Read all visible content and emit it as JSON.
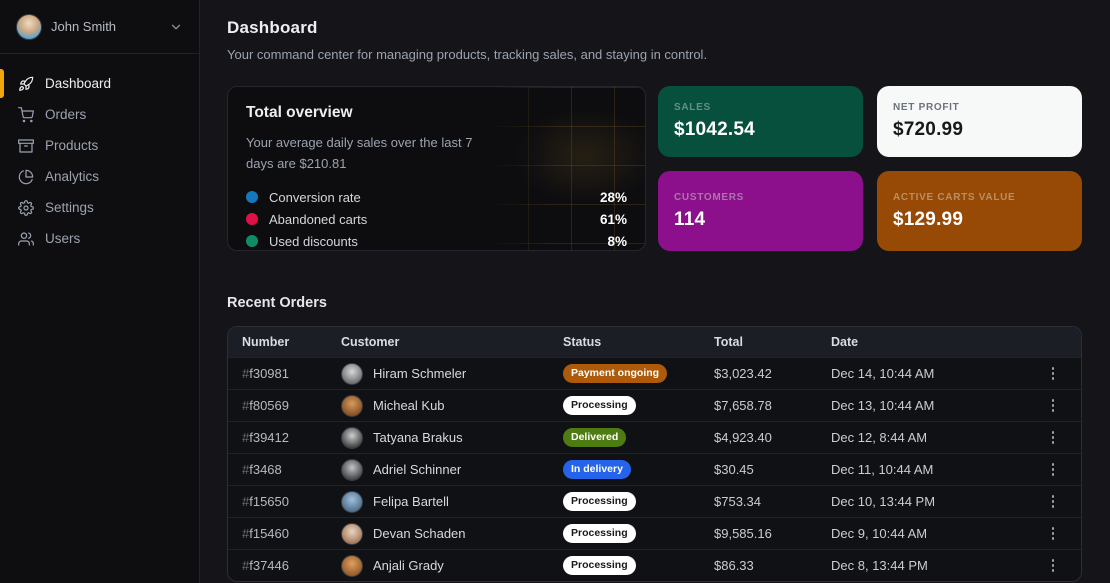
{
  "sidebar": {
    "user": {
      "name": "John Smith"
    },
    "items": [
      {
        "label": "Dashboard",
        "icon": "rocket-icon",
        "active": true
      },
      {
        "label": "Orders",
        "icon": "cart-icon",
        "active": false
      },
      {
        "label": "Products",
        "icon": "box-icon",
        "active": false
      },
      {
        "label": "Analytics",
        "icon": "pie-chart-icon",
        "active": false
      },
      {
        "label": "Settings",
        "icon": "gear-icon",
        "active": false
      },
      {
        "label": "Users",
        "icon": "users-icon",
        "active": false
      }
    ]
  },
  "header": {
    "title": "Dashboard",
    "subtitle": "Your command center for managing products, tracking sales, and staying in control."
  },
  "overview": {
    "title": "Total overview",
    "description": "Your average daily sales over the last 7 days are $210.81",
    "legend": [
      {
        "label": "Conversion rate",
        "value": "28%",
        "color": "#1478be"
      },
      {
        "label": "Abandoned carts",
        "value": "61%",
        "color": "#e01245"
      },
      {
        "label": "Used discounts",
        "value": "8%",
        "color": "#0e8c64"
      }
    ]
  },
  "stats": [
    {
      "label": "SALES",
      "value": "$1042.54",
      "bg": "#07503d",
      "label_color": "#649181",
      "value_color": "#ffffff"
    },
    {
      "label": "NET PROFIT",
      "value": "$720.99",
      "bg": "#f7f8f8",
      "label_color": "#6b7280",
      "value_color": "#17181a"
    },
    {
      "label": "CUSTOMERS",
      "value": "114",
      "bg": "#8c108c",
      "label_color": "#af74ab",
      "value_color": "#ffffff"
    },
    {
      "label": "ACTIVE CARTS VALUE",
      "value": "$129.99",
      "bg": "#964a05",
      "label_color": "#bd8e60",
      "value_color": "#ffffff"
    }
  ],
  "orders": {
    "title": "Recent Orders",
    "columns": [
      "Number",
      "Customer",
      "Status",
      "Total",
      "Date"
    ],
    "rows": [
      {
        "number": "#f30981",
        "customer": "Hiram Schmeler",
        "status": "Payment ongoing",
        "status_type": "payment-ongoing",
        "total": "$3,023.42",
        "date": "Dec 14, 10:44 AM",
        "avatar_from": "#d8d8d8",
        "avatar_to": "#5f5f63"
      },
      {
        "number": "#f80569",
        "customer": "Micheal Kub",
        "status": "Processing",
        "status_type": "processing",
        "total": "$7,658.78",
        "date": "Dec 13, 10:44 AM",
        "avatar_from": "#d79b5a",
        "avatar_to": "#7a4520"
      },
      {
        "number": "#f39412",
        "customer": "Tatyana Brakus",
        "status": "Delivered",
        "status_type": "delivered",
        "total": "$4,923.40",
        "date": "Dec 12, 8:44 AM",
        "avatar_from": "#cfcfcf",
        "avatar_to": "#2f2f33"
      },
      {
        "number": "#f3468",
        "customer": "Adriel Schinner",
        "status": "In delivery",
        "status_type": "in-delivery",
        "total": "$30.45",
        "date": "Dec 11, 10:44 AM",
        "avatar_from": "#c4c4c6",
        "avatar_to": "#333338"
      },
      {
        "number": "#f15650",
        "customer": "Felipa Bartell",
        "status": "Processing",
        "status_type": "processing",
        "total": "$753.34",
        "date": "Dec 10, 13:44 PM",
        "avatar_from": "#9fc0dd",
        "avatar_to": "#44637f"
      },
      {
        "number": "#f15460",
        "customer": "Devan Schaden",
        "status": "Processing",
        "status_type": "processing",
        "total": "$9,585.16",
        "date": "Dec 9, 10:44 AM",
        "avatar_from": "#e9d6c3",
        "avatar_to": "#9c6a4a"
      },
      {
        "number": "#f37446",
        "customer": "Anjali Grady",
        "status": "Processing",
        "status_type": "processing",
        "total": "$86.33",
        "date": "Dec 8, 13:44 PM",
        "avatar_from": "#e0a060",
        "avatar_to": "#8a5020"
      }
    ]
  },
  "colors": {
    "accent": "#f0a50a",
    "page_bg": "#151519",
    "sidebar_bg": "#0e0e11",
    "card_bg": "#0d0d10"
  }
}
